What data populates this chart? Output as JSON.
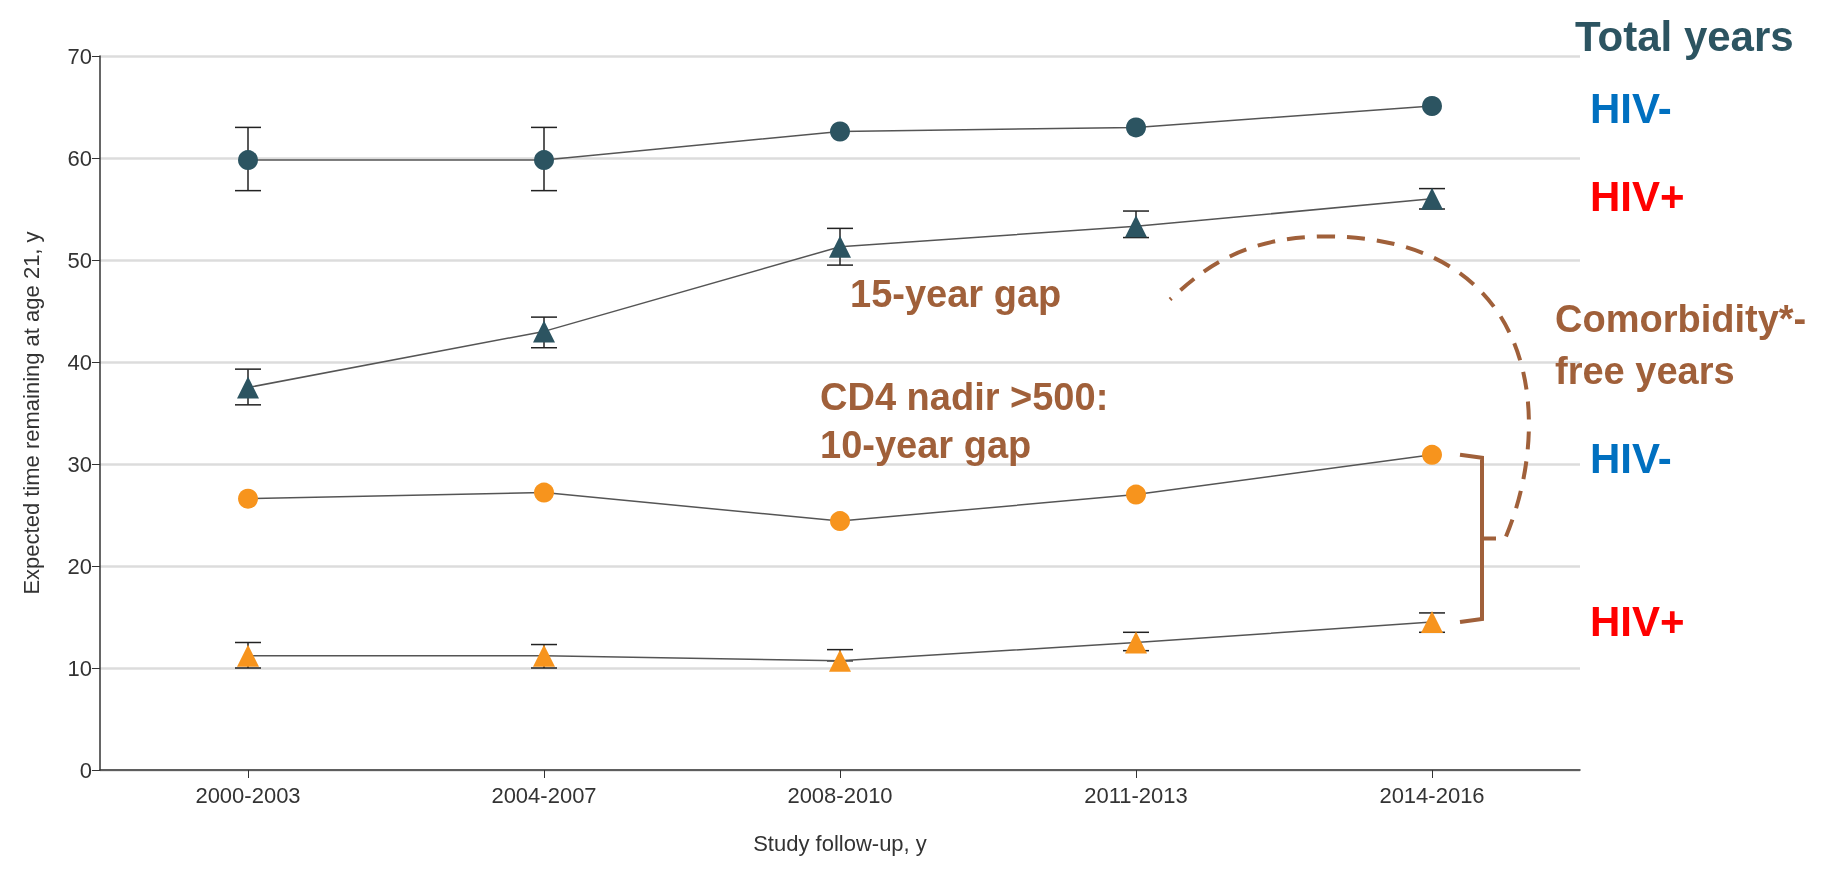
{
  "chart_data": {
    "type": "line",
    "xlabel": "Study follow-up, y",
    "ylabel": "Expected time remaining at age 21, y",
    "categories": [
      "2000-2003",
      "2004-2007",
      "2008-2010",
      "2011-2013",
      "2014-2016"
    ],
    "series": [
      {
        "color": "#2c5461",
        "marker": "circle",
        "values": [
          59.8,
          59.8,
          62.6,
          63.0,
          65.1
        ],
        "errors": [
          [
            56.8,
            63.0
          ],
          [
            56.8,
            63.0
          ],
          null,
          null,
          null
        ]
      },
      {
        "color": "#2c5461",
        "marker": "triangle",
        "values": [
          37.5,
          43.0,
          51.3,
          53.3,
          56.0
        ],
        "errors": [
          [
            35.8,
            39.3
          ],
          [
            41.4,
            44.4
          ],
          [
            49.5,
            53.1
          ],
          [
            52.2,
            54.8
          ],
          [
            55.0,
            57.0
          ]
        ]
      },
      {
        "color": "#f7941d",
        "marker": "circle",
        "values": [
          26.6,
          27.2,
          24.4,
          27.0,
          30.9
        ]
      },
      {
        "color": "#f7941d",
        "marker": "triangle",
        "values": [
          11.2,
          11.2,
          10.7,
          12.5,
          14.5
        ],
        "errors": [
          [
            10.0,
            12.5
          ],
          [
            10.0,
            12.3
          ],
          [
            10.7,
            11.8
          ],
          [
            11.7,
            13.5
          ],
          [
            13.5,
            15.4
          ]
        ]
      }
    ],
    "ylim": [
      0,
      70
    ],
    "yticks": [
      0,
      10,
      20,
      30,
      40,
      50,
      60,
      70
    ],
    "grid": "y",
    "annotations": [
      "Total years",
      "HIV-",
      "HIV+",
      "Comorbidity*-",
      "free years",
      "HIV-",
      "HIV+",
      "15-year gap",
      "CD4 nadir >500: 10-year gap"
    ]
  }
}
